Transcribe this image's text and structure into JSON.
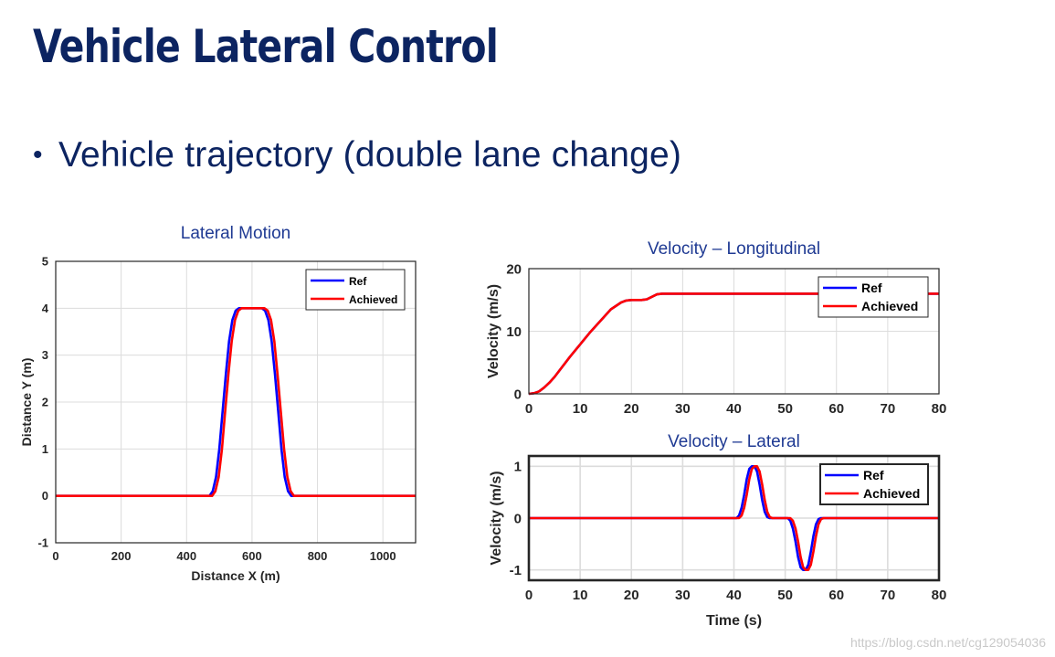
{
  "slide": {
    "title": "Vehicle Lateral Control",
    "bullet": "Vehicle trajectory (double lane change)",
    "watermark": "https://blog.csdn.net/cg129054036"
  },
  "colors": {
    "title": "#0c2461",
    "ref": "#0000ff",
    "achieved": "#ff0000",
    "axis": "#262626",
    "grid": "#dcdcdc"
  },
  "chart_data": [
    {
      "id": "lateral-motion",
      "type": "line",
      "title": "Lateral Motion",
      "xlabel": "Distance X (m)",
      "ylabel": "Distance Y (m)",
      "xlim": [
        0,
        1100
      ],
      "ylim": [
        -1,
        5
      ],
      "xticks": [
        0,
        200,
        400,
        600,
        800,
        1000
      ],
      "yticks": [
        -1,
        0,
        1,
        2,
        3,
        4,
        5
      ],
      "grid": true,
      "legend_position": "top-right",
      "legend": [
        "Ref",
        "Achieved"
      ],
      "series": [
        {
          "name": "Ref",
          "color": "#0000ff",
          "x": [
            0,
            470,
            480,
            490,
            500,
            510,
            520,
            530,
            540,
            550,
            560,
            570,
            580,
            600,
            620,
            630,
            640,
            650,
            660,
            670,
            680,
            690,
            700,
            710,
            720,
            730,
            1100
          ],
          "y": [
            0,
            0,
            0.1,
            0.4,
            1.0,
            1.8,
            2.6,
            3.3,
            3.75,
            3.95,
            4.0,
            4.0,
            4.0,
            4.0,
            4.0,
            4.0,
            3.95,
            3.75,
            3.3,
            2.6,
            1.8,
            1.0,
            0.4,
            0.1,
            0,
            0,
            0
          ]
        },
        {
          "name": "Achieved",
          "color": "#ff0000",
          "x": [
            0,
            478,
            488,
            498,
            508,
            518,
            528,
            538,
            548,
            558,
            568,
            578,
            588,
            608,
            628,
            638,
            648,
            658,
            668,
            678,
            688,
            698,
            708,
            718,
            728,
            738,
            1100
          ],
          "y": [
            0,
            0,
            0.1,
            0.4,
            1.0,
            1.8,
            2.6,
            3.3,
            3.75,
            3.95,
            4.0,
            4.0,
            4.0,
            4.0,
            4.0,
            4.0,
            3.95,
            3.75,
            3.3,
            2.6,
            1.8,
            1.0,
            0.4,
            0.1,
            0,
            0,
            0
          ]
        }
      ]
    },
    {
      "id": "velocity-longitudinal",
      "type": "line",
      "title": "Velocity – Longitudinal",
      "xlabel": "",
      "ylabel": "Velocity (m/s)",
      "xlim": [
        0,
        80
      ],
      "ylim": [
        0,
        20
      ],
      "xticks": [
        0,
        10,
        20,
        30,
        40,
        50,
        60,
        70,
        80
      ],
      "yticks": [
        0,
        10,
        20
      ],
      "grid": true,
      "legend_position": "top-right",
      "legend": [
        "Ref",
        "Achieved"
      ],
      "series": [
        {
          "name": "Ref",
          "color": "#0000ff",
          "x": [
            0,
            1,
            2,
            3,
            4,
            5,
            8,
            12,
            16,
            18,
            19,
            20,
            22,
            23,
            24,
            25,
            26,
            40,
            60,
            80
          ],
          "y": [
            0,
            0.1,
            0.4,
            1.0,
            1.8,
            2.7,
            5.9,
            9.9,
            13.5,
            14.6,
            14.9,
            15.0,
            15.0,
            15.1,
            15.5,
            15.9,
            16.0,
            16.0,
            16.0,
            16.0
          ]
        },
        {
          "name": "Achieved",
          "color": "#ff0000",
          "x": [
            0,
            1,
            2,
            3,
            4,
            5,
            8,
            12,
            16,
            18,
            19,
            20,
            22,
            23,
            24,
            25,
            26,
            40,
            60,
            80
          ],
          "y": [
            0,
            0.1,
            0.4,
            1.0,
            1.8,
            2.7,
            5.9,
            9.9,
            13.5,
            14.6,
            14.9,
            15.0,
            15.0,
            15.1,
            15.5,
            15.9,
            16.0,
            16.0,
            16.0,
            16.0
          ]
        }
      ]
    },
    {
      "id": "velocity-lateral",
      "type": "line",
      "title": "Velocity – Lateral",
      "xlabel": "Time (s)",
      "ylabel": "Velocity (m/s)",
      "xlim": [
        0,
        80
      ],
      "ylim": [
        -1.2,
        1.2
      ],
      "xticks": [
        0,
        10,
        20,
        30,
        40,
        50,
        60,
        70,
        80
      ],
      "yticks": [
        -1,
        0,
        1
      ],
      "grid": true,
      "legend_position": "top-right",
      "legend": [
        "Ref",
        "Achieved"
      ],
      "series": [
        {
          "name": "Ref",
          "color": "#0000ff",
          "x": [
            0,
            40.5,
            41,
            41.5,
            42,
            42.5,
            43,
            43.5,
            44,
            44.5,
            45,
            45.5,
            46,
            46.5,
            47,
            47.5,
            48,
            50.5,
            51,
            51.5,
            52,
            52.5,
            53,
            53.5,
            54,
            54.5,
            55,
            55.5,
            56,
            56.5,
            57,
            80
          ],
          "y": [
            0,
            0,
            0.05,
            0.2,
            0.45,
            0.75,
            0.95,
            1.0,
            1.0,
            0.9,
            0.65,
            0.35,
            0.12,
            0.02,
            0,
            0,
            0,
            0,
            -0.05,
            -0.2,
            -0.45,
            -0.75,
            -0.95,
            -1.0,
            -1.0,
            -0.9,
            -0.65,
            -0.35,
            -0.12,
            -0.02,
            0,
            0
          ]
        },
        {
          "name": "Achieved",
          "color": "#ff0000",
          "x": [
            0,
            41,
            41.5,
            42,
            42.5,
            43,
            43.5,
            44,
            44.5,
            45,
            45.5,
            46,
            46.5,
            47,
            47.5,
            48,
            48.5,
            51,
            51.5,
            52,
            52.5,
            53,
            53.5,
            54,
            54.5,
            55,
            55.5,
            56,
            56.5,
            57,
            57.5,
            80
          ],
          "y": [
            0,
            0,
            0.05,
            0.2,
            0.45,
            0.75,
            0.95,
            1.0,
            1.0,
            0.9,
            0.65,
            0.35,
            0.12,
            0.02,
            0,
            0,
            0,
            0,
            -0.05,
            -0.2,
            -0.45,
            -0.75,
            -0.95,
            -1.0,
            -1.0,
            -0.9,
            -0.65,
            -0.35,
            -0.12,
            -0.02,
            0,
            0
          ]
        }
      ]
    }
  ]
}
